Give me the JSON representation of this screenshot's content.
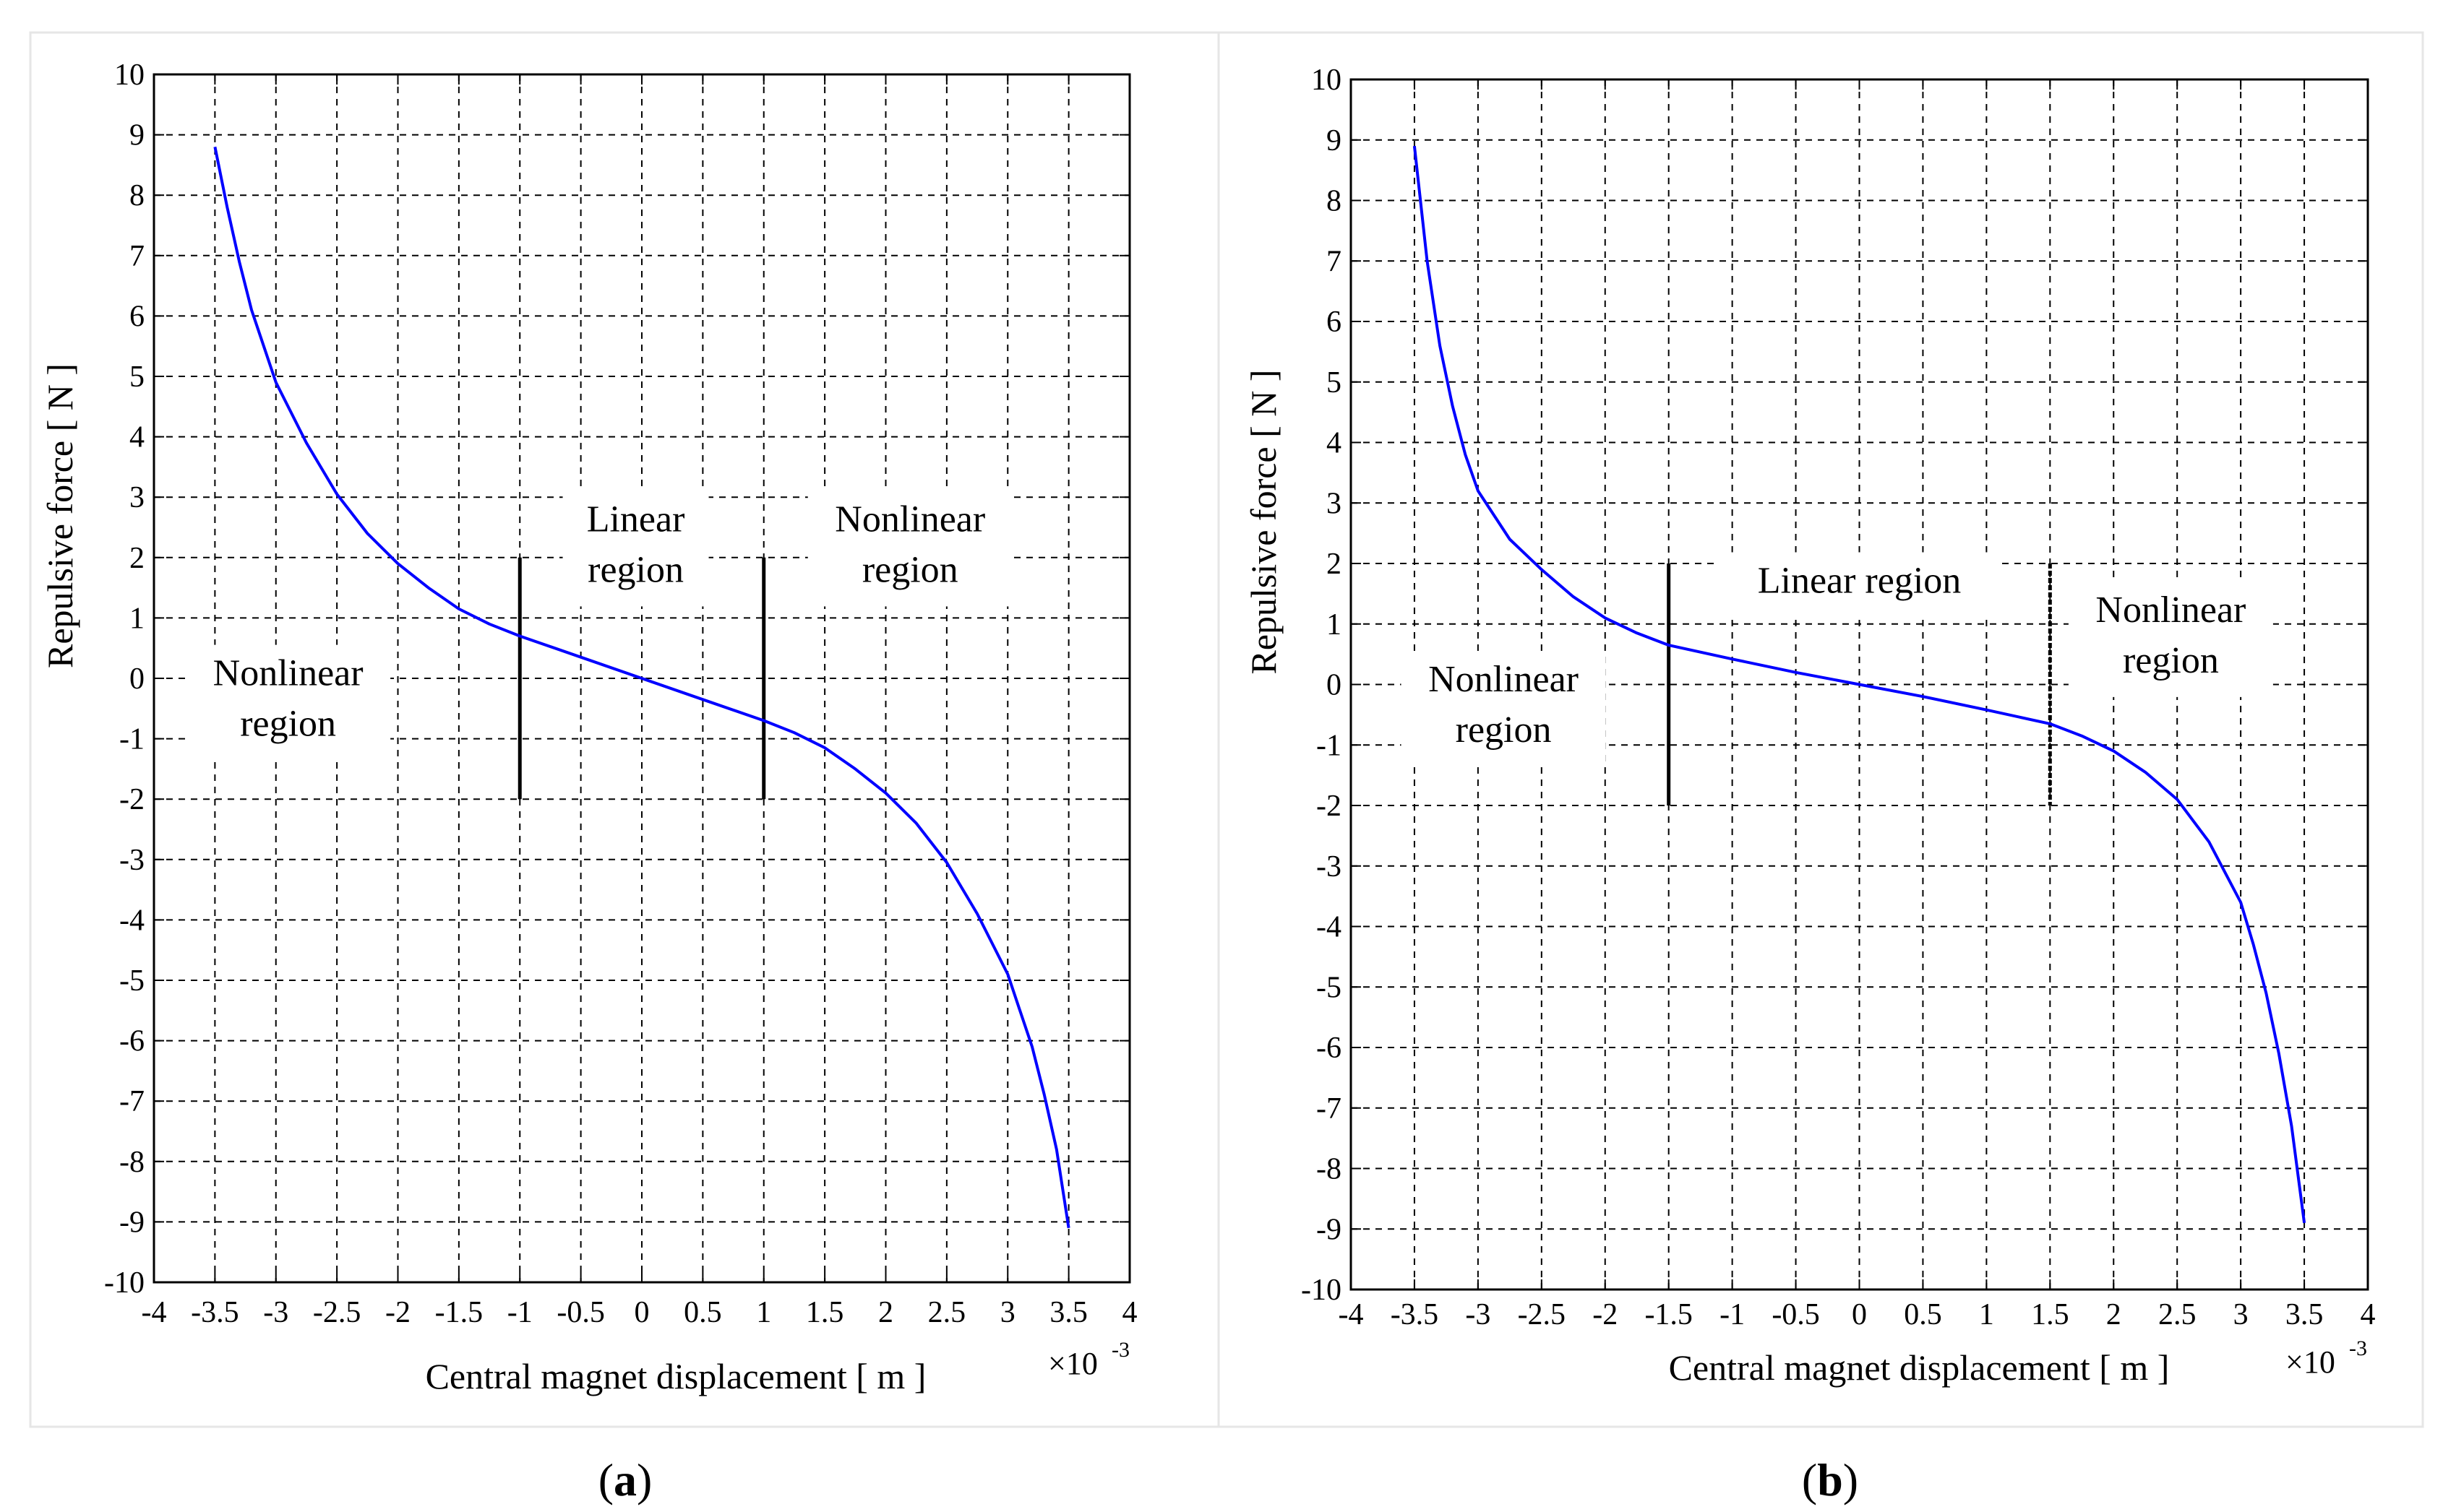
{
  "colors": {
    "curve": "#0000ff",
    "axes": "#000000",
    "grid": "#000000",
    "panel_border": "#e6e6e6"
  },
  "chart_data": [
    {
      "panel": "a",
      "caption": "a",
      "type": "line",
      "xlabel": "Central magnet displacement   [ m ]",
      "ylabel": "Repulsive force  [ N ]",
      "x_multiplier": "×10",
      "x_multiplier_exp": "-3",
      "xlim": [
        -4,
        4
      ],
      "ylim": [
        -10,
        10
      ],
      "xticks": [
        -4,
        -3.5,
        -3,
        -2.5,
        -2,
        -1.5,
        -1,
        -0.5,
        0,
        0.5,
        1,
        1.5,
        2,
        2.5,
        3,
        3.5,
        4
      ],
      "yticks": [
        -10,
        -9,
        -8,
        -7,
        -6,
        -5,
        -4,
        -3,
        -2,
        -1,
        0,
        1,
        2,
        3,
        4,
        5,
        6,
        7,
        8,
        9,
        10
      ],
      "grid": true,
      "series": [
        {
          "name": "Repulsive force",
          "x": [
            -3.5,
            -3.4,
            -3.3,
            -3.2,
            -3.1,
            -3.0,
            -2.75,
            -2.5,
            -2.25,
            -2.0,
            -1.75,
            -1.5,
            -1.25,
            -1.0,
            -0.5,
            0,
            0.5,
            1.0,
            1.25,
            1.5,
            1.75,
            2.0,
            2.25,
            2.5,
            2.75,
            3.0,
            3.1,
            3.2,
            3.3,
            3.4,
            3.5
          ],
          "y": [
            8.8,
            7.8,
            6.9,
            6.1,
            5.5,
            4.9,
            3.9,
            3.05,
            2.4,
            1.9,
            1.5,
            1.15,
            0.9,
            0.7,
            0.35,
            0,
            -0.35,
            -0.7,
            -0.9,
            -1.15,
            -1.5,
            -1.9,
            -2.4,
            -3.05,
            -3.9,
            -4.9,
            -5.5,
            -6.1,
            -6.9,
            -7.8,
            -9.1
          ]
        }
      ],
      "region_lines": [
        {
          "x": -1,
          "y_from": -2,
          "y_to": 2,
          "style": "solid"
        },
        {
          "x": 1,
          "y_from": -2,
          "y_to": 2,
          "style": "solid"
        }
      ],
      "annotations": [
        {
          "lines": [
            "Nonlinear",
            "region"
          ],
          "x": -2.9,
          "y": -0.45
        },
        {
          "lines": [
            "Linear",
            "region"
          ],
          "x": -0.05,
          "y": 2.1
        },
        {
          "lines": [
            "Nonlinear",
            "region"
          ],
          "x": 2.2,
          "y": 2.1
        }
      ]
    },
    {
      "panel": "b",
      "caption": "b",
      "type": "line",
      "xlabel": "Central magnet displacement   [ m ]",
      "ylabel": "Repulsive force  [ N ]",
      "x_multiplier": "×10",
      "x_multiplier_exp": "-3",
      "xlim": [
        -4,
        4
      ],
      "ylim": [
        -10,
        10
      ],
      "xticks": [
        -4,
        -3.5,
        -3,
        -2.5,
        -2,
        -1.5,
        -1,
        -0.5,
        0,
        0.5,
        1,
        1.5,
        2,
        2.5,
        3,
        3.5,
        4
      ],
      "yticks": [
        -10,
        -9,
        -8,
        -7,
        -6,
        -5,
        -4,
        -3,
        -2,
        -1,
        0,
        1,
        2,
        3,
        4,
        5,
        6,
        7,
        8,
        9,
        10
      ],
      "grid": true,
      "series": [
        {
          "name": "Repulsive force",
          "x": [
            -3.5,
            -3.4,
            -3.3,
            -3.2,
            -3.1,
            -3.0,
            -2.75,
            -2.5,
            -2.25,
            -2.0,
            -1.75,
            -1.5,
            -1.0,
            -0.5,
            0,
            0.5,
            1.0,
            1.5,
            1.75,
            2.0,
            2.25,
            2.5,
            2.75,
            3.0,
            3.1,
            3.2,
            3.3,
            3.4,
            3.5
          ],
          "y": [
            8.9,
            7.0,
            5.6,
            4.6,
            3.8,
            3.2,
            2.4,
            1.9,
            1.45,
            1.1,
            0.85,
            0.65,
            0.42,
            0.2,
            0,
            -0.2,
            -0.42,
            -0.65,
            -0.85,
            -1.1,
            -1.45,
            -1.9,
            -2.6,
            -3.6,
            -4.3,
            -5.1,
            -6.1,
            -7.3,
            -8.9
          ]
        }
      ],
      "region_lines": [
        {
          "x": -1.5,
          "y_from": -2,
          "y_to": 2,
          "style": "solid"
        },
        {
          "x": 1.5,
          "y_from": -2,
          "y_to": 2,
          "style": "dotted"
        }
      ],
      "annotations": [
        {
          "lines": [
            "Nonlinear",
            "region"
          ],
          "x": -2.8,
          "y": -0.45
        },
        {
          "lines": [
            "Linear region"
          ],
          "x": 0,
          "y": 1.6
        },
        {
          "lines": [
            "Nonlinear",
            "region"
          ],
          "x": 2.45,
          "y": 0.7
        }
      ]
    }
  ]
}
